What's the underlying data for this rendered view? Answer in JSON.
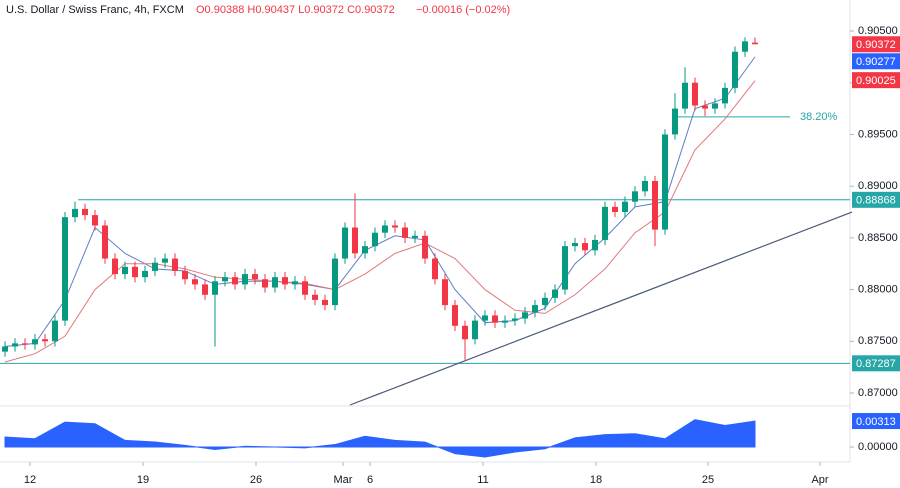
{
  "chart_data": {
    "type": "candlestick",
    "title": "U.S. Dollar / Swiss Franc, 4h, FXCM",
    "ohlc_text": "O0.90388 H0.90437 L0.90372 C0.90372",
    "change_text": "−0.00016 (−0.02%)",
    "xlim": [
      -0.5,
      84.5
    ],
    "ylim": [
      0.86884,
      0.908
    ],
    "yticks": [
      {
        "value": 0.905,
        "label": "0.90500"
      },
      {
        "value": 0.9,
        "label": "0.90000"
      },
      {
        "value": 0.895,
        "label": "0.89500"
      },
      {
        "value": 0.89,
        "label": "0.89000"
      },
      {
        "value": 0.885,
        "label": "0.88500"
      },
      {
        "value": 0.88,
        "label": "0.88000"
      },
      {
        "value": 0.875,
        "label": "0.87500"
      },
      {
        "value": 0.87,
        "label": "0.87000"
      }
    ],
    "xticks": [
      {
        "value": 2.5,
        "label": "12"
      },
      {
        "value": 13.8,
        "label": "19"
      },
      {
        "value": 25.1,
        "label": "26"
      },
      {
        "value": 33.8,
        "label": "Mar"
      },
      {
        "value": 36.5,
        "label": "6"
      },
      {
        "value": 47.8,
        "label": "11"
      },
      {
        "value": 59.1,
        "label": "18"
      },
      {
        "value": 70.3,
        "label": "25"
      },
      {
        "value": 81.5,
        "label": "Apr"
      }
    ],
    "up_color": "#089981",
    "down_color": "#f23645",
    "open": [
      0.874,
      0.8745,
      0.8748,
      0.8747,
      0.8752,
      0.875,
      0.877,
      0.887,
      0.8878,
      0.8872,
      0.8862,
      0.883,
      0.8815,
      0.8822,
      0.8812,
      0.8818,
      0.8826,
      0.883,
      0.8818,
      0.881,
      0.8805,
      0.8795,
      0.8808,
      0.8812,
      0.8805,
      0.8815,
      0.881,
      0.8802,
      0.8812,
      0.8805,
      0.8808,
      0.8795,
      0.879,
      0.8785,
      0.883,
      0.886,
      0.8835,
      0.8842,
      0.8855,
      0.8862,
      0.886,
      0.885,
      0.8852,
      0.883,
      0.881,
      0.8785,
      0.8765,
      0.8752,
      0.877,
      0.8775,
      0.8768,
      0.877,
      0.8772,
      0.8778,
      0.8785,
      0.8792,
      0.88,
      0.8842,
      0.8845,
      0.8838,
      0.8848,
      0.888,
      0.8875,
      0.8885,
      0.8895,
      0.8905,
      0.8858,
      0.895,
      0.8975,
      0.9,
      0.8978,
      0.8975,
      0.898,
      0.8995,
      0.903,
      0.90388
    ],
    "high": [
      0.875,
      0.8753,
      0.8753,
      0.8757,
      0.8757,
      0.8775,
      0.8875,
      0.8885,
      0.8883,
      0.8877,
      0.8867,
      0.8835,
      0.8827,
      0.8827,
      0.8823,
      0.8831,
      0.8835,
      0.8835,
      0.8823,
      0.8815,
      0.881,
      0.8813,
      0.8817,
      0.8817,
      0.882,
      0.882,
      0.8815,
      0.8817,
      0.8817,
      0.8813,
      0.8813,
      0.88,
      0.8795,
      0.8835,
      0.8865,
      0.8893,
      0.8847,
      0.886,
      0.8867,
      0.8867,
      0.8865,
      0.8857,
      0.8857,
      0.8835,
      0.8815,
      0.879,
      0.877,
      0.8775,
      0.878,
      0.878,
      0.8775,
      0.8777,
      0.8783,
      0.879,
      0.8797,
      0.8805,
      0.8847,
      0.885,
      0.885,
      0.8853,
      0.8885,
      0.8885,
      0.889,
      0.89,
      0.891,
      0.891,
      0.8955,
      0.899,
      0.9015,
      0.9005,
      0.8983,
      0.8985,
      0.9,
      0.9035,
      0.9044,
      0.90437
    ],
    "low": [
      0.8735,
      0.874,
      0.8742,
      0.8742,
      0.8745,
      0.8745,
      0.8765,
      0.8865,
      0.8867,
      0.8857,
      0.8825,
      0.881,
      0.881,
      0.8807,
      0.8807,
      0.8813,
      0.8821,
      0.8813,
      0.8805,
      0.88,
      0.879,
      0.8745,
      0.8803,
      0.88,
      0.88,
      0.8805,
      0.8797,
      0.8797,
      0.88,
      0.88,
      0.879,
      0.8785,
      0.878,
      0.878,
      0.8825,
      0.883,
      0.883,
      0.8837,
      0.885,
      0.8855,
      0.8845,
      0.8845,
      0.8825,
      0.8805,
      0.878,
      0.876,
      0.8732,
      0.8747,
      0.8765,
      0.8763,
      0.8763,
      0.8765,
      0.8767,
      0.8773,
      0.878,
      0.8787,
      0.8795,
      0.8837,
      0.8833,
      0.8833,
      0.8843,
      0.887,
      0.887,
      0.888,
      0.889,
      0.8842,
      0.8853,
      0.8945,
      0.897,
      0.8973,
      0.8968,
      0.897,
      0.8975,
      0.899,
      0.9025,
      0.90372
    ],
    "close": [
      0.8745,
      0.8748,
      0.8747,
      0.8752,
      0.875,
      0.877,
      0.887,
      0.8878,
      0.8872,
      0.8862,
      0.883,
      0.8815,
      0.8822,
      0.8812,
      0.8818,
      0.8826,
      0.883,
      0.8818,
      0.881,
      0.8805,
      0.8795,
      0.8808,
      0.8812,
      0.8805,
      0.8815,
      0.881,
      0.8802,
      0.8812,
      0.8805,
      0.8808,
      0.8795,
      0.879,
      0.8785,
      0.883,
      0.886,
      0.8835,
      0.8842,
      0.8855,
      0.8862,
      0.886,
      0.885,
      0.8852,
      0.883,
      0.881,
      0.8785,
      0.8765,
      0.8752,
      0.877,
      0.8775,
      0.8768,
      0.877,
      0.8772,
      0.8778,
      0.8785,
      0.8792,
      0.88,
      0.8842,
      0.8845,
      0.8838,
      0.8848,
      0.888,
      0.8875,
      0.8885,
      0.8895,
      0.8905,
      0.8858,
      0.895,
      0.8975,
      0.9,
      0.8978,
      0.8975,
      0.898,
      0.8995,
      0.903,
      0.904,
      0.90372
    ],
    "series": [
      {
        "color": "#5b7ec7",
        "x": [
          0,
          3,
          6,
          9,
          12,
          15,
          18,
          21,
          24,
          27,
          30,
          33,
          36,
          39,
          42,
          45,
          48,
          51,
          54,
          57,
          60,
          63,
          66,
          69,
          72,
          75
        ],
        "values": [
          0.8745,
          0.8748,
          0.879,
          0.886,
          0.8835,
          0.882,
          0.8818,
          0.8805,
          0.8808,
          0.8808,
          0.8805,
          0.88,
          0.8838,
          0.8852,
          0.8848,
          0.88,
          0.8768,
          0.877,
          0.8782,
          0.8825,
          0.885,
          0.888,
          0.8885,
          0.8975,
          0.8985,
          0.9025
        ]
      },
      {
        "color": "#e0787a",
        "x": [
          0,
          3,
          6,
          9,
          12,
          15,
          18,
          21,
          24,
          27,
          30,
          33,
          36,
          39,
          42,
          45,
          48,
          51,
          54,
          57,
          60,
          63,
          66,
          69,
          72,
          75
        ],
        "values": [
          0.873,
          0.8738,
          0.8755,
          0.88,
          0.8825,
          0.8825,
          0.882,
          0.8812,
          0.881,
          0.8808,
          0.8806,
          0.88,
          0.8815,
          0.8835,
          0.8845,
          0.883,
          0.88,
          0.878,
          0.8777,
          0.8795,
          0.882,
          0.8855,
          0.8875,
          0.8935,
          0.8965,
          0.9002
        ]
      }
    ],
    "levels": [
      {
        "value": 0.88868,
        "label": "0.88868",
        "color": "#26a6a6",
        "x_start": 7.3
      },
      {
        "value": 0.87287,
        "label": "0.87287",
        "color": "#26a6a6",
        "x_start": -0.5
      }
    ],
    "fib": {
      "value": 0.8967,
      "label": "38.20%",
      "color": "#26a6a6",
      "x": [
        67,
        78.5
      ]
    },
    "trendline": {
      "x": [
        34.5,
        84.7
      ],
      "y": [
        0.86884,
        0.8875
      ],
      "color": "#4a5a7a"
    },
    "price_labels": [
      {
        "value": 0.90372,
        "label": "0.90372",
        "color": "#f23645"
      },
      {
        "value": 0.90277,
        "label": "0.90277",
        "color": "#2962ff"
      },
      {
        "value": 0.90025,
        "label": "0.90025",
        "color": "#f23645"
      }
    ],
    "oscillator": {
      "type": "area",
      "color": "#2962ff",
      "ylim": [
        -0.00156,
        0.0047
      ],
      "yticks": [
        {
          "value": 0,
          "label": "0.00000"
        }
      ],
      "x": [
        0,
        3,
        6,
        9,
        12,
        15,
        18,
        21,
        24,
        27,
        30,
        33,
        36,
        39,
        42,
        45,
        48,
        51,
        54,
        57,
        60,
        63,
        66,
        69,
        72,
        75
      ],
      "values": [
        0.0012,
        0.001,
        0.003,
        0.0028,
        0.0008,
        0.0006,
        0.0002,
        -0.0003,
        0.0001,
        0.0,
        -0.0001,
        0.0003,
        0.0013,
        0.0008,
        0.0006,
        -0.0008,
        -0.0012,
        -0.0006,
        -0.0002,
        0.0011,
        0.0015,
        0.0016,
        0.001,
        0.0033,
        0.0026,
        0.00313
      ],
      "last_label": {
        "value": 0.00313,
        "label": "0.00313",
        "color": "#2962ff"
      }
    }
  }
}
